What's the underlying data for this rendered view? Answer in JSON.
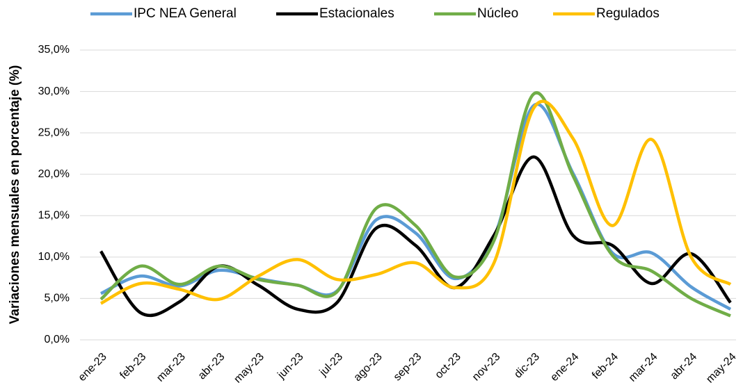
{
  "chart_data": {
    "type": "line",
    "y_label": "Variaciones mensuales en porcentaje (%)",
    "categories": [
      "ene-23",
      "feb-23",
      "mar-23",
      "abr-23",
      "may-23",
      "jun-23",
      "jul-23",
      "ago-23",
      "sep-23",
      "oct-23",
      "nov-23",
      "dic-23",
      "ene-24",
      "feb-24",
      "mar-24",
      "abr-24",
      "may-24"
    ],
    "series": [
      {
        "name": "IPC NEA General",
        "color": "#5b9bd5",
        "values": [
          5.6,
          7.7,
          6.5,
          8.4,
          7.4,
          6.6,
          5.9,
          14.5,
          12.9,
          7.4,
          12.5,
          28.3,
          20.1,
          10.5,
          10.5,
          6.4,
          3.7
        ]
      },
      {
        "name": "Estacionales",
        "color": "#000000",
        "values": [
          10.7,
          3.3,
          4.6,
          8.9,
          6.6,
          3.7,
          4.5,
          13.5,
          11.4,
          6.3,
          12.7,
          22.1,
          12.6,
          11.4,
          6.8,
          10.4,
          4.5
        ]
      },
      {
        "name": "Núcleo",
        "color": "#70ad47",
        "values": [
          4.9,
          8.9,
          6.7,
          8.9,
          7.3,
          6.6,
          5.8,
          15.9,
          13.8,
          7.6,
          12.1,
          29.7,
          19.8,
          10.2,
          8.3,
          5.0,
          2.9
        ]
      },
      {
        "name": "Regulados",
        "color": "#ffc000",
        "values": [
          4.4,
          6.8,
          6.1,
          4.9,
          7.7,
          9.7,
          7.3,
          7.9,
          9.3,
          6.3,
          9.4,
          28.0,
          24.3,
          13.8,
          24.2,
          10.0,
          6.7
        ]
      }
    ],
    "ylim": [
      0,
      35
    ],
    "yticks": [
      {
        "value": 0,
        "label": "0,0%"
      },
      {
        "value": 5,
        "label": "5,0%"
      },
      {
        "value": 10,
        "label": "10,0%"
      },
      {
        "value": 15,
        "label": "15,0%"
      },
      {
        "value": 20,
        "label": "20,0%"
      },
      {
        "value": 25,
        "label": "25,0%"
      },
      {
        "value": 30,
        "label": "30,0%"
      },
      {
        "value": 35,
        "label": "35,0%"
      }
    ],
    "grid": true,
    "legend": "top"
  }
}
